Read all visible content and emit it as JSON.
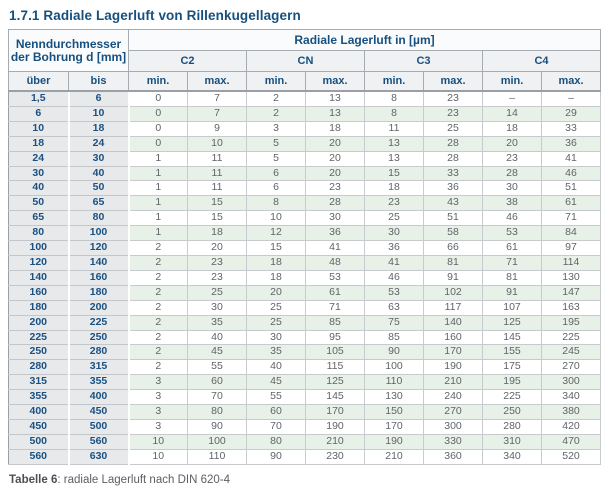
{
  "title": "1.7.1 Radiale Lagerluft von Rillenkugellagern",
  "table": {
    "left_header": "Nenndurchmesser der Bohrung d [mm]",
    "group_header": "Radiale Lagerluft in [µm]",
    "classes": [
      "C2",
      "CN",
      "C3",
      "C4"
    ],
    "col_uber": "über",
    "col_bis": "bis",
    "min_label": "min.",
    "max_label": "max.",
    "rows": [
      [
        "1,5",
        "6",
        "0",
        "7",
        "2",
        "13",
        "8",
        "23",
        "–",
        "–"
      ],
      [
        "6",
        "10",
        "0",
        "7",
        "2",
        "13",
        "8",
        "23",
        "14",
        "29"
      ],
      [
        "10",
        "18",
        "0",
        "9",
        "3",
        "18",
        "11",
        "25",
        "18",
        "33"
      ],
      [
        "18",
        "24",
        "0",
        "10",
        "5",
        "20",
        "13",
        "28",
        "20",
        "36"
      ],
      [
        "24",
        "30",
        "1",
        "11",
        "5",
        "20",
        "13",
        "28",
        "23",
        "41"
      ],
      [
        "30",
        "40",
        "1",
        "11",
        "6",
        "20",
        "15",
        "33",
        "28",
        "46"
      ],
      [
        "40",
        "50",
        "1",
        "11",
        "6",
        "23",
        "18",
        "36",
        "30",
        "51"
      ],
      [
        "50",
        "65",
        "1",
        "15",
        "8",
        "28",
        "23",
        "43",
        "38",
        "61"
      ],
      [
        "65",
        "80",
        "1",
        "15",
        "10",
        "30",
        "25",
        "51",
        "46",
        "71"
      ],
      [
        "80",
        "100",
        "1",
        "18",
        "12",
        "36",
        "30",
        "58",
        "53",
        "84"
      ],
      [
        "100",
        "120",
        "2",
        "20",
        "15",
        "41",
        "36",
        "66",
        "61",
        "97"
      ],
      [
        "120",
        "140",
        "2",
        "23",
        "18",
        "48",
        "41",
        "81",
        "71",
        "114"
      ],
      [
        "140",
        "160",
        "2",
        "23",
        "18",
        "53",
        "46",
        "91",
        "81",
        "130"
      ],
      [
        "160",
        "180",
        "2",
        "25",
        "20",
        "61",
        "53",
        "102",
        "91",
        "147"
      ],
      [
        "180",
        "200",
        "2",
        "30",
        "25",
        "71",
        "63",
        "117",
        "107",
        "163"
      ],
      [
        "200",
        "225",
        "2",
        "35",
        "25",
        "85",
        "75",
        "140",
        "125",
        "195"
      ],
      [
        "225",
        "250",
        "2",
        "40",
        "30",
        "95",
        "85",
        "160",
        "145",
        "225"
      ],
      [
        "250",
        "280",
        "2",
        "45",
        "35",
        "105",
        "90",
        "170",
        "155",
        "245"
      ],
      [
        "280",
        "315",
        "2",
        "55",
        "40",
        "115",
        "100",
        "190",
        "175",
        "270"
      ],
      [
        "315",
        "355",
        "3",
        "60",
        "45",
        "125",
        "110",
        "210",
        "195",
        "300"
      ],
      [
        "355",
        "400",
        "3",
        "70",
        "55",
        "145",
        "130",
        "240",
        "225",
        "340"
      ],
      [
        "400",
        "450",
        "3",
        "80",
        "60",
        "170",
        "150",
        "270",
        "250",
        "380"
      ],
      [
        "450",
        "500",
        "3",
        "90",
        "70",
        "190",
        "170",
        "300",
        "280",
        "420"
      ],
      [
        "500",
        "560",
        "10",
        "100",
        "80",
        "210",
        "190",
        "330",
        "310",
        "470"
      ],
      [
        "560",
        "630",
        "10",
        "110",
        "90",
        "230",
        "210",
        "360",
        "340",
        "520"
      ]
    ]
  },
  "caption": {
    "bold": "Tabelle 6",
    "rest": ": radiale Lagerluft nach DIN 620-4"
  },
  "colors": {
    "accent_blue": "#17507f",
    "row_green": "#e8f1e8",
    "left_gray": "#e8e9eb",
    "text_gray": "#606468"
  }
}
